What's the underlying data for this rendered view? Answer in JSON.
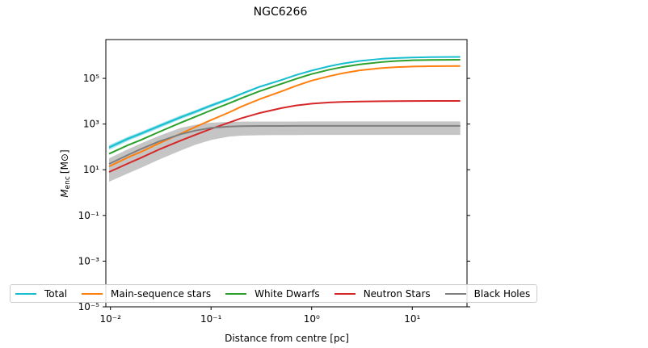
{
  "chart_data": {
    "type": "line",
    "title": "NGC6266",
    "xlabel": "Distance from centre [pc]",
    "ylabel": "M_enc [M⊙]",
    "ylabel_main": "M",
    "ylabel_sub": "enc",
    "ylabel_unit": "[M⊙]",
    "xscale": "log",
    "yscale": "log",
    "xlim": [
      0.009,
      35
    ],
    "ylim": [
      1e-05,
      5000000
    ],
    "xticks": [
      {
        "value": 0.01,
        "label": "10⁻²"
      },
      {
        "value": 0.1,
        "label": "10⁻¹"
      },
      {
        "value": 1,
        "label": "10⁰"
      },
      {
        "value": 10,
        "label": "10¹"
      }
    ],
    "yticks": [
      {
        "value": 1e-05,
        "label": "10⁻⁵"
      },
      {
        "value": 0.001,
        "label": "10⁻³"
      },
      {
        "value": 0.1,
        "label": "10⁻¹"
      },
      {
        "value": 10,
        "label": "10¹"
      },
      {
        "value": 1000,
        "label": "10³"
      },
      {
        "value": 100000,
        "label": "10⁵"
      }
    ],
    "x": [
      0.0097,
      0.015,
      0.02,
      0.03,
      0.05,
      0.07,
      0.1,
      0.15,
      0.2,
      0.3,
      0.5,
      0.7,
      1,
      1.5,
      2,
      3,
      5,
      7,
      10,
      15,
      20,
      30
    ],
    "series": [
      {
        "name": "Total",
        "color": "#17becf",
        "values": [
          95,
          230,
          380,
          800,
          2000,
          3500,
          6500,
          12500,
          21000,
          42000,
          85000,
          140000,
          220000,
          340000,
          440000,
          580000,
          720000,
          780000,
          820000,
          850000,
          860000,
          870000
        ],
        "band": {
          "lower": [
            75,
            185,
            310,
            650,
            1650,
            2900,
            5500,
            10800,
            18500,
            38000,
            78000,
            130000,
            205000,
            320000,
            420000,
            560000,
            700000,
            760000,
            800000,
            830000,
            840000,
            850000
          ],
          "upper": [
            120,
            280,
            460,
            960,
            2400,
            4100,
            7500,
            14200,
            23500,
            46000,
            92000,
            150000,
            235000,
            360000,
            460000,
            600000,
            740000,
            800000,
            840000,
            870000,
            880000,
            890000
          ]
        }
      },
      {
        "name": "Main-sequence stars",
        "color": "#ff7f0e",
        "values": [
          14,
          35,
          60,
          140,
          380,
          750,
          1500,
          3200,
          5800,
          12000,
          27000,
          47000,
          80000,
          125000,
          165000,
          225000,
          285000,
          310000,
          330000,
          340000,
          345000,
          348000
        ]
      },
      {
        "name": "White Dwarfs",
        "color": "#2ca02c",
        "values": [
          50,
          120,
          200,
          440,
          1150,
          2100,
          4000,
          8000,
          13500,
          27000,
          58000,
          95000,
          155000,
          240000,
          310000,
          410000,
          520000,
          580000,
          620000,
          640000,
          650000,
          655000
        ]
      },
      {
        "name": "Neutron Stars",
        "color": "#d62728",
        "values": [
          8,
          19,
          33,
          75,
          190,
          340,
          620,
          1150,
          1800,
          3000,
          5000,
          6500,
          7800,
          8800,
          9300,
          9700,
          10000,
          10100,
          10200,
          10250,
          10280,
          10300
        ]
      },
      {
        "name": "Black Holes",
        "color": "#7f7f7f",
        "values": [
          18,
          45,
          80,
          170,
          360,
          520,
          680,
          780,
          810,
          825,
          830,
          832,
          833,
          834,
          834,
          835,
          835,
          835,
          835,
          835,
          835,
          835
        ],
        "band": {
          "lower": [
            3,
            7,
            12,
            27,
            70,
            125,
            200,
            280,
            310,
            325,
            330,
            332,
            333,
            334,
            334,
            335,
            335,
            335,
            335,
            335,
            335,
            335
          ],
          "upper": [
            32,
            80,
            140,
            300,
            680,
            930,
            1150,
            1250,
            1280,
            1290,
            1295,
            1298,
            1300,
            1300,
            1300,
            1300,
            1300,
            1300,
            1300,
            1300,
            1300,
            1300
          ]
        }
      }
    ],
    "grid": false,
    "legend": "bottom"
  }
}
